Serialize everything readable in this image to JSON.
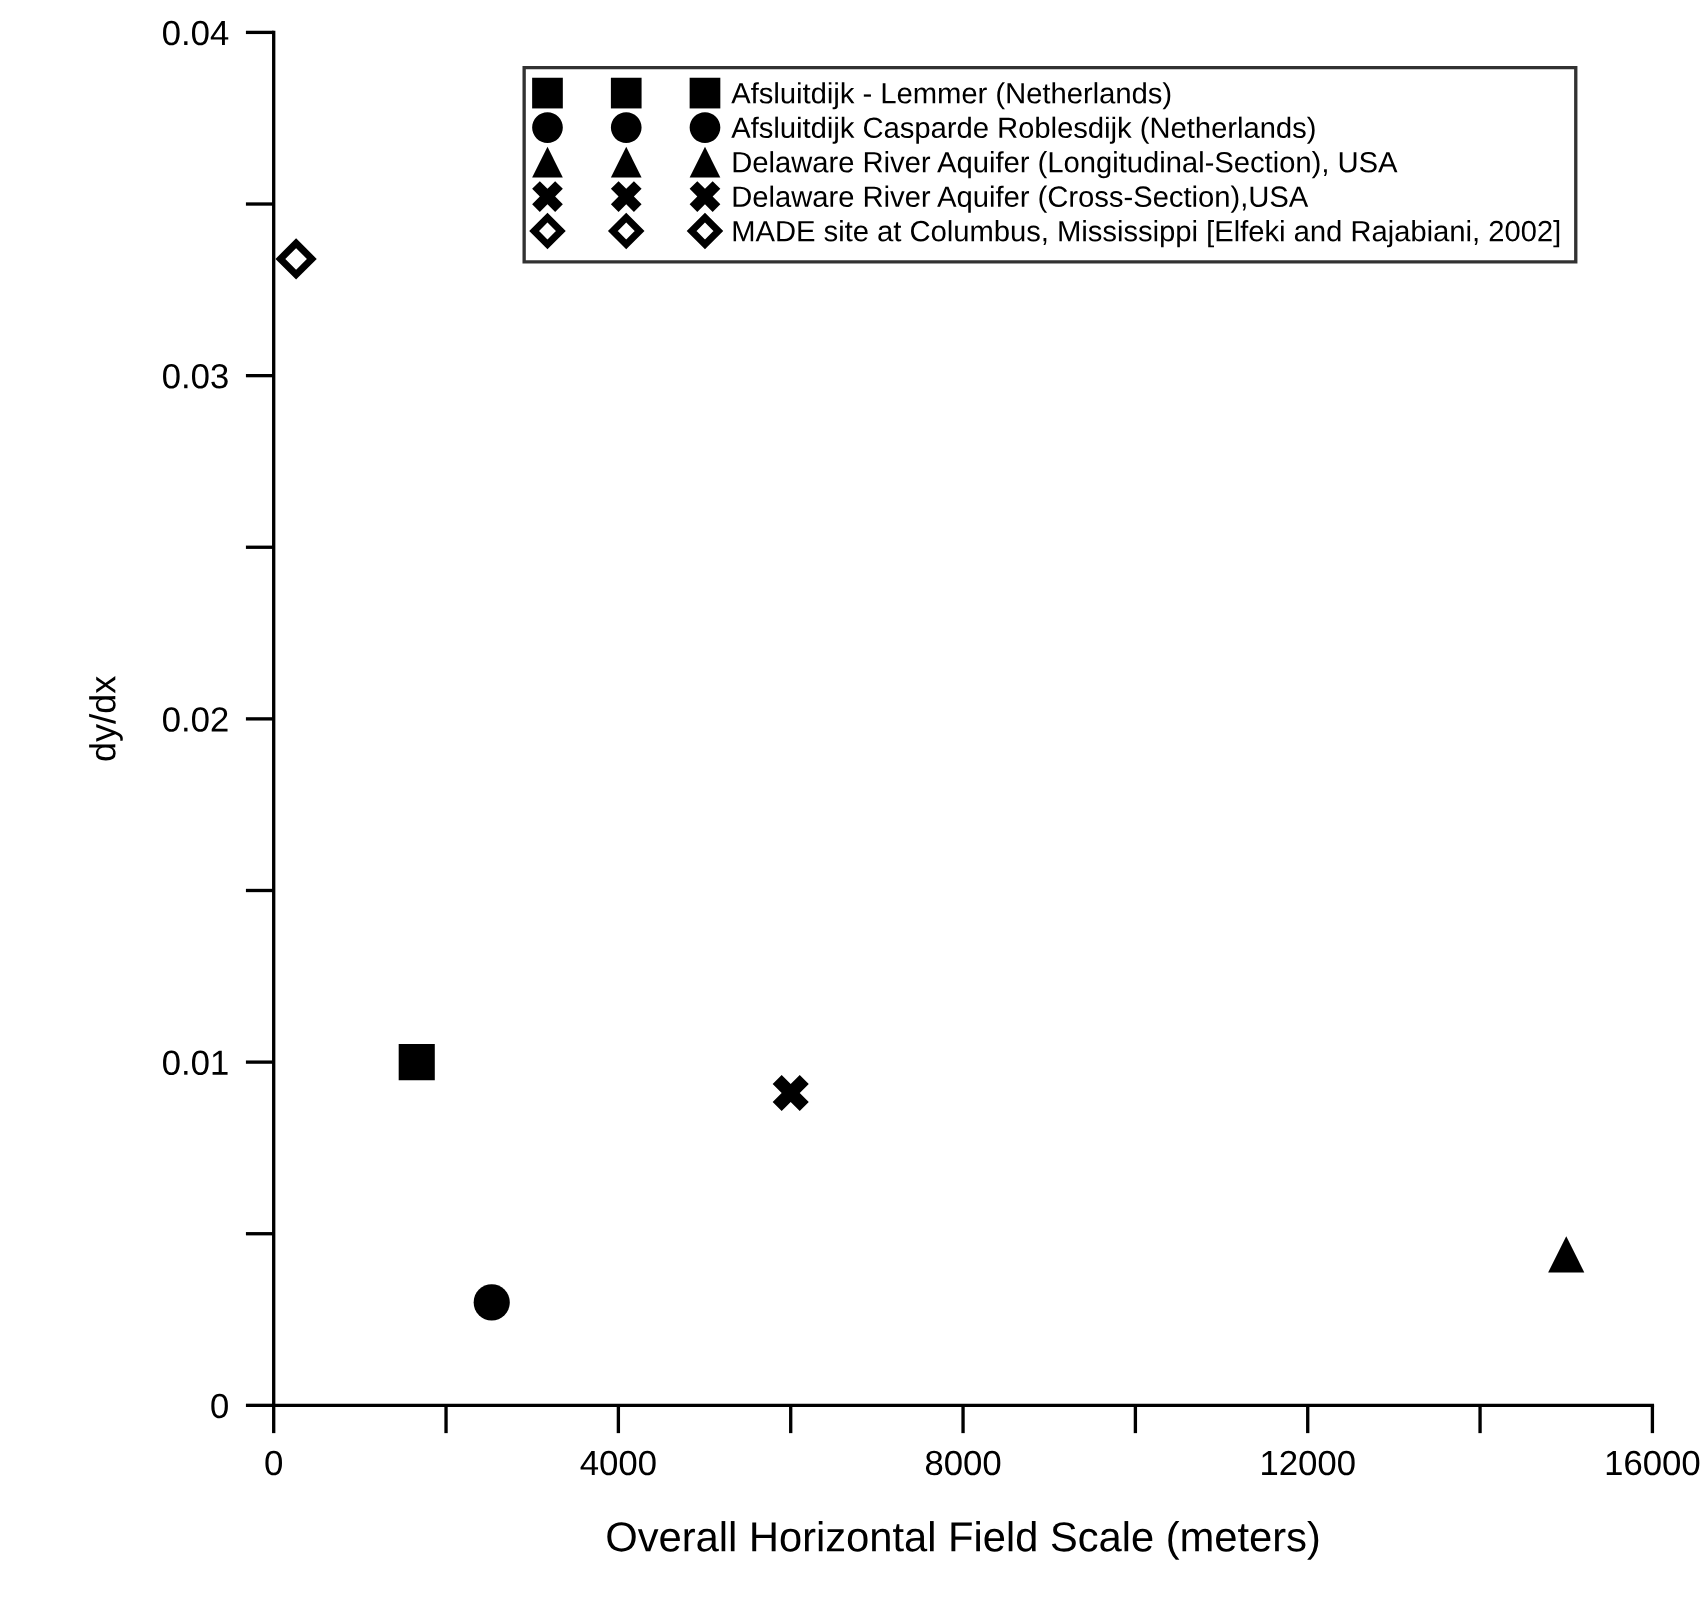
{
  "chart_data": {
    "type": "scatter",
    "xlabel": "Overall Horizontal Field Scale (meters)",
    "ylabel": "dy/dx",
    "xlim": [
      0,
      16000
    ],
    "xticks": [
      0,
      {
        "value": 2000,
        "label": null
      },
      4000,
      {
        "value": 6000,
        "label": null
      },
      8000,
      {
        "value": 10000,
        "label": null
      },
      12000,
      {
        "value": 14000,
        "label": null
      },
      16000
    ],
    "ylim": [
      0,
      0.04
    ],
    "yticks": [
      0,
      {
        "value": 0.005,
        "label": null
      },
      0.01,
      {
        "value": 0.015,
        "label": null
      },
      0.02,
      {
        "value": 0.025,
        "label": null
      },
      0.03,
      {
        "value": 0.035,
        "label": null
      },
      0.04
    ],
    "grid": false,
    "legend": "top right",
    "series": [
      {
        "name": "Afsluitdijk - Lemmer (Netherlands)",
        "color": "#000000",
        "marker": "square",
        "x": [
          1660
        ],
        "values": [
          0.01
        ]
      },
      {
        "name": "Afsluitdijk Casparde Roblesdijk (Netherlands)",
        "color": "#000000",
        "marker": "circle",
        "x": [
          2530
        ],
        "values": [
          0.003
        ]
      },
      {
        "name": "Delaware River Aquifer (Longitudinal-Section), USA",
        "color": "#000000",
        "marker": "triangle",
        "x": [
          15000
        ],
        "values": [
          0.0044
        ]
      },
      {
        "name": "Delaware River Aquifer (Cross-Section),USA",
        "color": "#000000",
        "marker": "cross",
        "x": [
          6000
        ],
        "values": [
          0.0091
        ]
      },
      {
        "name": "MADE site at Columbus, Mississippi [Elfeki and Rajabiani, 2002]",
        "color": "#000000",
        "marker": "diamond",
        "x": [
          260
        ],
        "values": [
          0.0334
        ]
      }
    ]
  }
}
